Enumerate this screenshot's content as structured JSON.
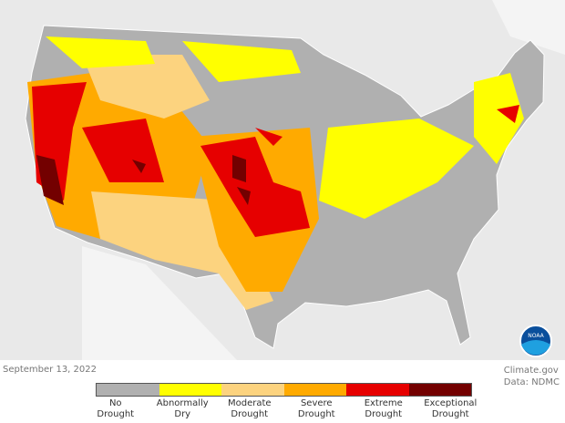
{
  "date": "September 13, 2022",
  "credit": {
    "source": "Climate.gov",
    "data": "Data: NDMC"
  },
  "legend": [
    {
      "label1": "No",
      "label2": "Drought",
      "color": "#b0b0b0"
    },
    {
      "label1": "Abnormally",
      "label2": "Dry",
      "color": "#ffff00"
    },
    {
      "label1": "Moderate",
      "label2": "Drought",
      "color": "#fcd37f"
    },
    {
      "label1": "Severe",
      "label2": "Drought",
      "color": "#ffaa00"
    },
    {
      "label1": "Extreme",
      "label2": "Drought",
      "color": "#e60000"
    },
    {
      "label1": "Exceptional",
      "label2": "Drought",
      "color": "#730000"
    }
  ],
  "logo": "NOAA"
}
